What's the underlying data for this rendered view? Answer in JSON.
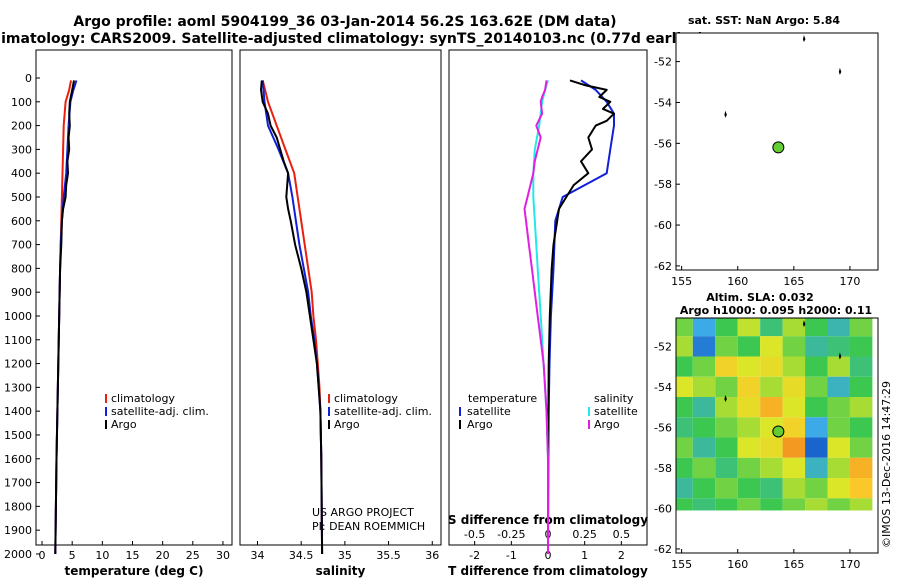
{
  "header": {
    "title": "Argo profile: aoml 5904199_36 03-Jan-2014 56.2S 163.62E (DM data)",
    "subtitle": "Climatology: CARS2009. Satellite-adjusted climatology: synTS_20140103.nc (0.77d earlier)"
  },
  "colors": {
    "climatology": "#e8200f",
    "satellite": "#1020d8",
    "argo": "#000000",
    "salinity_satellite": "#22e8e8",
    "salinity_argo": "#e020e0",
    "marker": "#66cc33"
  },
  "chart_data": [
    {
      "type": "line",
      "panel": "temperature",
      "xlabel": "temperature (deg C)",
      "ylabel": "",
      "xlim": [
        -1,
        31.5
      ],
      "ylim": [
        2080,
        0
      ],
      "xticks": [
        0,
        5,
        10,
        15,
        20,
        25,
        30
      ],
      "yticks": [
        0,
        100,
        200,
        300,
        400,
        500,
        600,
        700,
        800,
        900,
        1000,
        1100,
        1200,
        1300,
        1400,
        1500,
        1600,
        1700,
        1800,
        1900,
        2000
      ],
      "legend": [
        "climatology",
        "satellite-adj. clim.",
        "Argo"
      ],
      "legend_position": "bottom-right",
      "series": [
        {
          "name": "climatology",
          "depth": [
            10,
            50,
            100,
            200,
            300,
            400,
            500,
            600,
            700,
            800,
            1000,
            1200,
            1400,
            1600,
            1800,
            2000
          ],
          "values": [
            4.8,
            4.5,
            3.9,
            3.6,
            3.5,
            3.4,
            3.3,
            3.2,
            3.1,
            3.0,
            2.85,
            2.7,
            2.55,
            2.4,
            2.3,
            2.2
          ]
        },
        {
          "name": "satellite-adj. clim.",
          "depth": [
            10,
            50,
            100,
            200,
            300,
            400,
            500,
            600,
            700,
            800,
            1000,
            1200,
            1400,
            1600,
            1800,
            2000
          ],
          "values": [
            5.7,
            5.2,
            4.7,
            4.4,
            4.2,
            4.0,
            3.6,
            3.3,
            3.1,
            3.0,
            2.85,
            2.7,
            2.55,
            2.4,
            2.3,
            2.2
          ]
        },
        {
          "name": "Argo",
          "depth": [
            10,
            50,
            100,
            150,
            200,
            250,
            300,
            350,
            400,
            450,
            500,
            550,
            600,
            700,
            800,
            1000,
            1200,
            1400,
            1600,
            1800,
            2000
          ],
          "values": [
            5.3,
            5.0,
            4.6,
            4.5,
            4.6,
            4.4,
            4.5,
            4.2,
            4.3,
            4.0,
            3.9,
            3.5,
            3.3,
            3.2,
            3.0,
            2.85,
            2.7,
            2.55,
            2.4,
            2.3,
            2.2
          ]
        }
      ]
    },
    {
      "type": "line",
      "panel": "salinity",
      "xlabel": "salinity",
      "ylabel": "",
      "xlim": [
        33.8,
        36.1
      ],
      "ylim": [
        2080,
        0
      ],
      "xticks": [
        34,
        34.5,
        35,
        35.5,
        36
      ],
      "xtick_labels": [
        "34",
        "34.5",
        "35",
        "35.5",
        "36"
      ],
      "legend": [
        "climatology",
        "satellite-adj. clim.",
        "Argo"
      ],
      "legend_position": "bottom-right",
      "annotations": [
        "US ARGO PROJECT",
        "PI: DEAN ROEMMICH"
      ],
      "series": [
        {
          "name": "climatology",
          "depth": [
            10,
            100,
            200,
            300,
            400,
            500,
            600,
            700,
            800,
            900,
            1000,
            1100,
            1200,
            1300,
            1400,
            1600,
            1800,
            2000
          ],
          "values": [
            34.06,
            34.12,
            34.22,
            34.32,
            34.42,
            34.46,
            34.5,
            34.54,
            34.58,
            34.62,
            34.64,
            34.67,
            34.69,
            34.71,
            34.72,
            34.73,
            34.735,
            34.74
          ]
        },
        {
          "name": "satellite-adj. clim.",
          "depth": [
            10,
            100,
            200,
            300,
            400,
            500,
            600,
            700,
            800,
            900,
            1000,
            1100,
            1200,
            1300,
            1400,
            1600,
            1800,
            2000
          ],
          "values": [
            34.06,
            34.08,
            34.12,
            34.24,
            34.35,
            34.4,
            34.44,
            34.48,
            34.53,
            34.58,
            34.61,
            34.65,
            34.68,
            34.7,
            34.72,
            34.73,
            34.735,
            34.74
          ]
        },
        {
          "name": "Argo",
          "depth": [
            10,
            50,
            100,
            150,
            200,
            250,
            300,
            350,
            400,
            450,
            500,
            550,
            600,
            700,
            800,
            900,
            1000,
            1100,
            1200,
            1300,
            1400,
            1600,
            1800,
            2000
          ],
          "values": [
            34.05,
            34.04,
            34.06,
            34.12,
            34.15,
            34.22,
            34.26,
            34.3,
            34.35,
            34.34,
            34.33,
            34.35,
            34.38,
            34.43,
            34.5,
            34.56,
            34.6,
            34.64,
            34.68,
            34.7,
            34.72,
            34.73,
            34.735,
            34.74
          ]
        }
      ]
    },
    {
      "type": "line",
      "panel": "differences",
      "xlabel": "T difference from climatology",
      "top_xlabel": "S difference from climatology",
      "xlim": [
        -2.7,
        2.7
      ],
      "ylim": [
        2080,
        0
      ],
      "xticks": [
        -2,
        -1,
        0,
        1,
        2
      ],
      "xtick_labels": [
        "-2",
        "-1",
        "0",
        "1",
        "2"
      ],
      "sticks": [
        -0.5,
        -0.25,
        0,
        0.25,
        0.5
      ],
      "stick_labels": [
        "-0.5",
        "-0.25",
        "0",
        "0.25",
        "0.5"
      ],
      "legend_temperature": {
        "title": "temperature",
        "items": [
          "satellite",
          "Argo"
        ]
      },
      "legend_salinity": {
        "title": "salinity",
        "items": [
          "satellite",
          "Argo"
        ]
      },
      "series": [
        {
          "name": "temperature satellite",
          "depth": [
            10,
            50,
            100,
            150,
            200,
            300,
            400,
            500,
            600,
            800,
            1000,
            1200,
            1400,
            1600,
            2000
          ],
          "values": [
            0.9,
            1.3,
            1.6,
            1.8,
            1.8,
            1.7,
            1.6,
            0.4,
            0.2,
            0.15,
            0.08,
            0.04,
            0.02,
            0.01,
            0.0
          ]
        },
        {
          "name": "temperature Argo",
          "depth": [
            10,
            30,
            50,
            80,
            100,
            130,
            150,
            180,
            200,
            250,
            300,
            350,
            400,
            450,
            500,
            550,
            600,
            700,
            800,
            1000,
            1200,
            1400,
            1600,
            2000
          ],
          "values": [
            0.6,
            1.0,
            1.6,
            1.4,
            1.7,
            1.5,
            1.8,
            1.6,
            1.3,
            1.1,
            1.2,
            0.9,
            1.1,
            0.7,
            0.5,
            0.3,
            0.25,
            0.15,
            0.1,
            0.05,
            0.02,
            0.01,
            0.0,
            0.0
          ]
        },
        {
          "name": "salinity satellite",
          "depth": [
            10,
            50,
            100,
            200,
            300,
            400,
            500,
            600,
            800,
            1000,
            1200,
            1400,
            1600,
            2000
          ],
          "values": [
            0.0,
            -0.02,
            -0.04,
            -0.06,
            -0.09,
            -0.1,
            -0.1,
            -0.09,
            -0.07,
            -0.05,
            -0.03,
            -0.01,
            0.0,
            0.0
          ]
        },
        {
          "name": "salinity Argo",
          "depth": [
            10,
            50,
            80,
            100,
            150,
            200,
            250,
            300,
            350,
            400,
            450,
            500,
            550,
            600,
            700,
            800,
            900,
            1000,
            1100,
            1200,
            1300,
            1400,
            1600,
            2000
          ],
          "values": [
            -0.01,
            -0.02,
            -0.04,
            -0.05,
            -0.04,
            -0.08,
            -0.05,
            -0.07,
            -0.09,
            -0.1,
            -0.12,
            -0.14,
            -0.16,
            -0.15,
            -0.13,
            -0.11,
            -0.09,
            -0.07,
            -0.05,
            -0.03,
            -0.02,
            -0.01,
            0.0,
            0.0
          ]
        }
      ]
    },
    {
      "type": "scatter",
      "panel": "sst_map",
      "title": "sat. SST: NaN Argo: 5.84",
      "xlim": [
        154.5,
        172.5
      ],
      "ylim": [
        -62.2,
        -50.6
      ],
      "xticks": [
        155,
        160,
        165,
        170
      ],
      "yticks": [
        -52,
        -54,
        -56,
        -58,
        -60,
        -62
      ],
      "points": [
        {
          "lon": 163.62,
          "lat": -56.2,
          "kind": "profile"
        },
        {
          "lon": 165.9,
          "lat": -50.9,
          "kind": "island"
        },
        {
          "lon": 169.1,
          "lat": -52.5,
          "kind": "island"
        },
        {
          "lon": 158.9,
          "lat": -54.6,
          "kind": "island"
        }
      ]
    },
    {
      "type": "heatmap",
      "panel": "sla_map",
      "title": "Altim. SLA: 0.032",
      "subtitle": "Argo h1000: 0.095 h2000: 0.11",
      "xlim": [
        154.5,
        172.5
      ],
      "ylim": [
        -62.2,
        -50.6
      ],
      "data_ylim": [
        -60.1,
        -50.6
      ],
      "xticks": [
        155,
        160,
        165,
        170
      ],
      "yticks": [
        -52,
        -54,
        -56,
        -58,
        -60,
        -62
      ],
      "grid": {
        "lon": [
          155,
          157,
          159,
          161,
          163,
          165,
          167,
          169,
          171
        ],
        "lat": [
          -51,
          -52,
          -53,
          -54,
          -55,
          -56,
          -57,
          -58,
          -59,
          -60
        ],
        "sla": [
          [
            0.02,
            -0.08,
            0.0,
            0.05,
            -0.02,
            0.04,
            0.0,
            -0.05,
            0.02
          ],
          [
            0.04,
            -0.12,
            0.02,
            0.0,
            0.06,
            0.02,
            -0.04,
            -0.02,
            0.0
          ],
          [
            0.0,
            0.02,
            0.1,
            0.06,
            0.08,
            0.04,
            0.0,
            0.04,
            -0.02
          ],
          [
            0.06,
            0.04,
            0.02,
            0.1,
            0.04,
            0.08,
            0.02,
            -0.06,
            0.0
          ],
          [
            0.0,
            -0.04,
            0.04,
            0.08,
            0.14,
            0.06,
            0.0,
            0.02,
            0.04
          ],
          [
            -0.02,
            0.0,
            0.02,
            0.04,
            0.06,
            0.1,
            -0.08,
            0.02,
            0.0
          ],
          [
            0.02,
            -0.04,
            0.0,
            0.06,
            0.08,
            0.16,
            -0.14,
            0.06,
            0.02
          ],
          [
            0.0,
            0.02,
            -0.02,
            0.02,
            0.04,
            0.06,
            -0.06,
            0.04,
            0.14
          ],
          [
            -0.04,
            0.0,
            0.02,
            0.0,
            -0.02,
            0.04,
            0.02,
            0.06,
            0.12
          ],
          [
            0.0,
            -0.02,
            0.0,
            0.02,
            0.0,
            0.02,
            0.04,
            0.02,
            0.04
          ]
        ]
      },
      "points": [
        {
          "lon": 163.62,
          "lat": -56.2,
          "kind": "profile"
        },
        {
          "lon": 165.9,
          "lat": -50.9,
          "kind": "island"
        },
        {
          "lon": 169.1,
          "lat": -52.5,
          "kind": "island"
        },
        {
          "lon": 158.9,
          "lat": -54.6,
          "kind": "island"
        }
      ]
    }
  ],
  "watermark": "©IMOS 13-Dec-2016 14:47:29"
}
